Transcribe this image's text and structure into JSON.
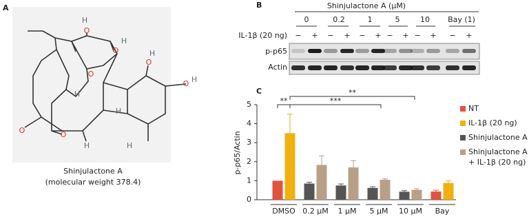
{
  "panel_a": {
    "label": "A",
    "atoms": [
      "H",
      "O",
      "H",
      "O",
      "O",
      "H",
      "O",
      "O",
      "H",
      "H",
      "H",
      "O",
      "O",
      "H",
      "H"
    ],
    "caption": [
      "Shinjulactone A",
      "(molecular weight 378.4)"
    ]
  },
  "panel_b": {
    "label": "B",
    "treatment_title": "Shinjulactone A (μM)",
    "doses": [
      "0",
      "0.2",
      "1",
      "5",
      "10",
      "Bay (1)"
    ],
    "stimulus_label": "IL-1β (20 ng)",
    "signs": [
      "−",
      "+",
      "−",
      "+",
      "−",
      "+",
      "−",
      "+",
      "−",
      "+",
      "−",
      "+"
    ],
    "rows": [
      "p-p65",
      "Actin"
    ]
  },
  "chart_data": {
    "label": "C",
    "type": "bar",
    "ylabel": "p-p65/Actin",
    "categories": [
      "DMSO",
      "0.2 μM",
      "1 μM",
      "5 μM",
      "10 μM",
      "Bay"
    ],
    "series": [
      {
        "name": "NT",
        "color": "#e0533f",
        "values": [
          1.0,
          null,
          null,
          null,
          null,
          0.43
        ],
        "errors": [
          null,
          null,
          null,
          null,
          null,
          0.07
        ]
      },
      {
        "name": "IL-1β (20 ng)",
        "color": "#f0b010",
        "values": [
          3.5,
          null,
          null,
          null,
          null,
          0.88
        ],
        "errors": [
          1.0,
          null,
          null,
          null,
          null,
          0.12
        ]
      },
      {
        "name": "Shinjulactone A",
        "color": "#555555",
        "values": [
          null,
          0.85,
          0.75,
          0.62,
          0.42,
          null
        ],
        "errors": [
          null,
          0.07,
          0.08,
          0.06,
          0.06,
          null
        ]
      },
      {
        "name": "Shinjulactone A + IL-1β (20 ng)",
        "color": "#b8a088",
        "values": [
          null,
          1.83,
          1.7,
          1.05,
          0.52,
          null
        ],
        "errors": [
          null,
          0.48,
          0.35,
          0.05,
          0.06,
          null
        ]
      }
    ],
    "ylim": [
      0,
      5
    ],
    "yticks": [
      0,
      1,
      2,
      3,
      4,
      5
    ],
    "annotations": [
      {
        "text": "**"
      },
      {
        "text": "***"
      },
      {
        "text": "**"
      }
    ]
  }
}
